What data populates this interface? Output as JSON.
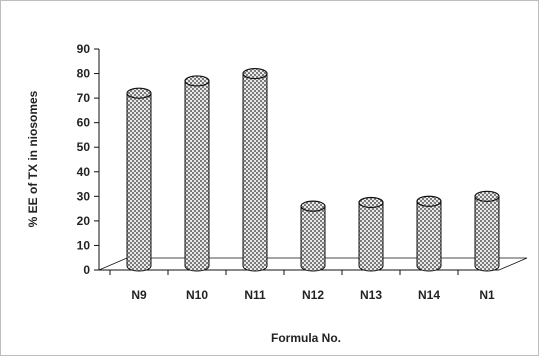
{
  "chart_data": {
    "type": "bar",
    "style": "3d-cylinder",
    "fill_pattern": "crosshatch",
    "categories": [
      "N9",
      "N10",
      "N11",
      "N12",
      "N13",
      "N14",
      "N1"
    ],
    "values": [
      72,
      77,
      80,
      26,
      27.5,
      28,
      30
    ],
    "ylabel": "% EE of TX in niosomes",
    "xlabel": "Formula No.",
    "ylim": [
      0,
      90
    ],
    "yticks": [
      0,
      10,
      20,
      30,
      40,
      50,
      60,
      70,
      80,
      90
    ],
    "grid": false,
    "legend": "none",
    "colors": {
      "stroke": "#111111",
      "hatch": "#555555",
      "background": "#ffffff"
    }
  }
}
